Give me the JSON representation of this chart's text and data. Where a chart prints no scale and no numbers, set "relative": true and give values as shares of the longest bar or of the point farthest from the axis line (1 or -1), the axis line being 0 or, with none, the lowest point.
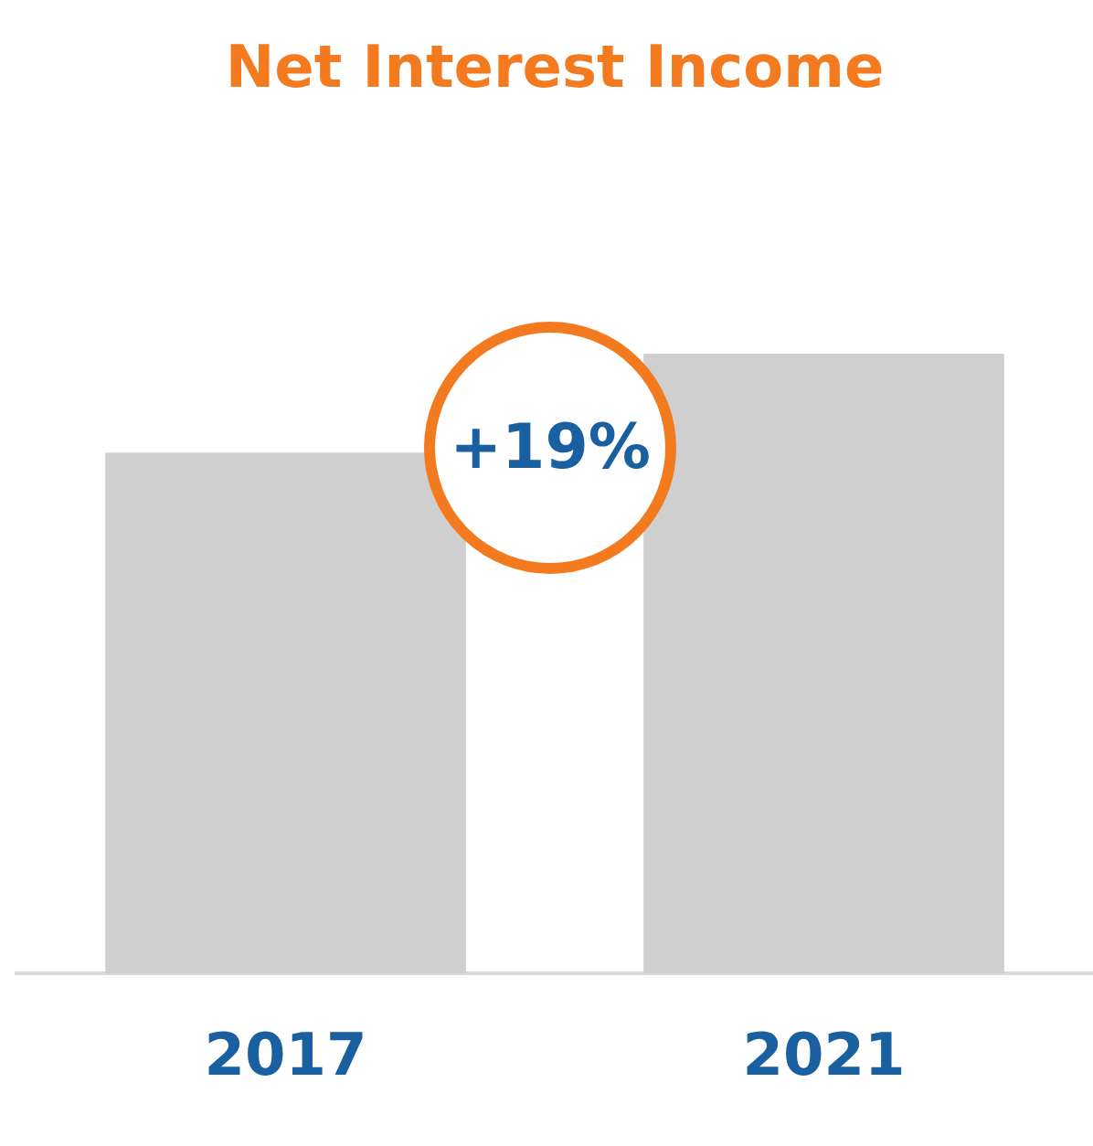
{
  "chart_data": {
    "type": "bar",
    "title": "Net Interest Income",
    "categories": [
      "2017",
      "2021"
    ],
    "values": [
      0.84,
      1
    ],
    "color": "#d0cfd0",
    "relative": true,
    "legend": false,
    "annotations": [
      "+19%"
    ]
  }
}
